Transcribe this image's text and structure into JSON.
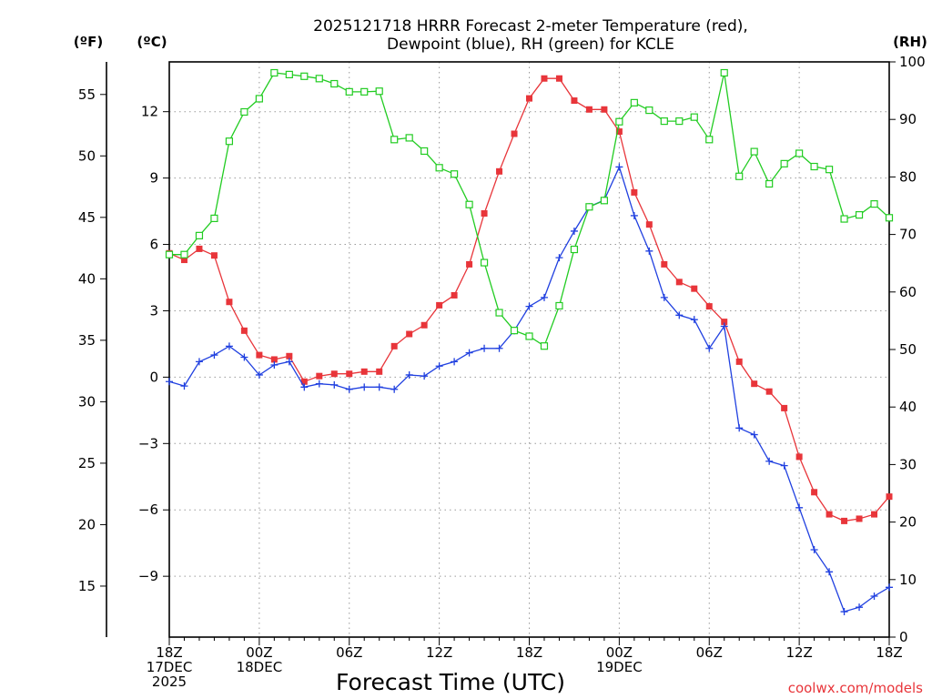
{
  "chart_data": {
    "type": "line",
    "title_line1": "2025121718 HRRR Forecast 2-meter Temperature (red),",
    "title_line2": "Dewpoint (blue), RH (green) for KCLE",
    "xlabel": "Forecast Time (UTC)",
    "credit": "coolwx.com/models",
    "left_outer_unit": "(ºF)",
    "left_inner_unit": "(ºC)",
    "right_unit": "(RH)",
    "colors": {
      "temperature": "#e8353a",
      "dewpoint": "#2040e0",
      "rh": "#22cc22"
    },
    "x_range_hours": [
      0,
      48
    ],
    "x_ticks": [
      {
        "hour": 0,
        "lines": [
          "18Z",
          "17DEC",
          "2025"
        ]
      },
      {
        "hour": 6,
        "lines": [
          "00Z",
          "18DEC"
        ]
      },
      {
        "hour": 12,
        "lines": [
          "06Z"
        ]
      },
      {
        "hour": 18,
        "lines": [
          "12Z"
        ]
      },
      {
        "hour": 24,
        "lines": [
          "18Z"
        ]
      },
      {
        "hour": 30,
        "lines": [
          "00Z",
          "19DEC"
        ]
      },
      {
        "hour": 36,
        "lines": [
          "06Z"
        ]
      },
      {
        "hour": 42,
        "lines": [
          "12Z"
        ]
      },
      {
        "hour": 48,
        "lines": [
          "18Z"
        ]
      }
    ],
    "celsius_range": [
      -11.75,
      14.25
    ],
    "celsius_ticks": [
      -9,
      -6,
      -3,
      0,
      3,
      6,
      9,
      12
    ],
    "fahrenheit_ticks": [
      15,
      20,
      25,
      30,
      35,
      40,
      45,
      50,
      55
    ],
    "rh_range": [
      0,
      100
    ],
    "rh_ticks": [
      0,
      10,
      20,
      30,
      40,
      50,
      60,
      70,
      80,
      90,
      100
    ],
    "series": [
      {
        "name": "Temperature (°C)",
        "axis": "celsius",
        "marker": "filled-square",
        "hours": [
          0,
          1,
          2,
          3,
          4,
          5,
          6,
          7,
          8,
          9,
          10,
          11,
          12,
          13,
          14,
          15,
          16,
          17,
          18,
          19,
          20,
          21,
          22,
          23,
          24,
          25,
          26,
          27,
          28,
          29,
          30,
          31,
          32,
          33,
          34,
          35,
          36,
          37,
          38,
          39,
          40,
          41,
          42,
          43,
          44,
          45,
          46,
          47,
          48
        ],
        "values": [
          5.6,
          5.3,
          5.8,
          5.5,
          3.4,
          2.1,
          1.0,
          0.8,
          0.95,
          -0.2,
          0.05,
          0.15,
          0.15,
          0.25,
          0.25,
          1.4,
          1.95,
          2.35,
          3.25,
          3.7,
          5.1,
          7.4,
          9.3,
          11.0,
          12.6,
          13.5,
          13.5,
          12.5,
          12.1,
          12.1,
          11.1,
          8.35,
          6.9,
          5.1,
          4.3,
          4.0,
          3.2,
          2.5,
          0.7,
          -0.3,
          -0.65,
          -1.4,
          -3.6,
          -5.2,
          -6.2,
          -6.5,
          -6.4,
          -6.2,
          -5.4
        ]
      },
      {
        "name": "Dewpoint (°C)",
        "axis": "celsius",
        "marker": "plus",
        "hours": [
          0,
          1,
          2,
          3,
          4,
          5,
          6,
          7,
          8,
          9,
          10,
          11,
          12,
          13,
          14,
          15,
          16,
          17,
          18,
          19,
          20,
          21,
          22,
          23,
          24,
          25,
          26,
          27,
          28,
          29,
          30,
          31,
          32,
          33,
          34,
          35,
          36,
          37,
          38,
          39,
          40,
          41,
          42,
          43,
          44,
          45,
          46,
          47,
          48
        ],
        "values": [
          -0.2,
          -0.4,
          0.7,
          1.0,
          1.4,
          0.9,
          0.1,
          0.55,
          0.7,
          -0.45,
          -0.3,
          -0.35,
          -0.55,
          -0.45,
          -0.45,
          -0.55,
          0.1,
          0.05,
          0.5,
          0.7,
          1.1,
          1.3,
          1.3,
          2.1,
          3.2,
          3.6,
          5.4,
          6.6,
          7.7,
          8.0,
          9.5,
          7.3,
          5.7,
          3.6,
          2.8,
          2.6,
          1.3,
          2.3,
          -2.3,
          -2.6,
          -3.8,
          -4.0,
          -5.9,
          -7.8,
          -8.8,
          -10.6,
          -10.4,
          -9.9,
          -9.5
        ]
      },
      {
        "name": "RH (%)",
        "axis": "rh",
        "marker": "open-square",
        "hours": [
          0,
          1,
          2,
          3,
          4,
          5,
          6,
          7,
          8,
          9,
          10,
          11,
          12,
          13,
          14,
          15,
          16,
          17,
          18,
          19,
          20,
          21,
          22,
          23,
          24,
          25,
          26,
          27,
          28,
          29,
          30,
          31,
          32,
          33,
          34,
          35,
          36,
          37,
          38,
          39,
          40,
          41,
          42,
          43,
          44,
          45,
          46,
          47,
          48
        ],
        "values": [
          66.5,
          66.5,
          69.8,
          72.8,
          86.2,
          91.3,
          93.6,
          98.1,
          97.8,
          97.5,
          97.1,
          96.2,
          94.8,
          94.8,
          94.9,
          86.5,
          86.8,
          84.5,
          81.6,
          80.5,
          75.2,
          65.1,
          56.4,
          53.3,
          52.3,
          50.6,
          57.6,
          67.4,
          74.8,
          75.9,
          89.6,
          92.9,
          91.6,
          89.7,
          89.7,
          90.4,
          86.5,
          98.1,
          80.1,
          84.4,
          78.8,
          82.3,
          84.1,
          81.8,
          81.3,
          72.7,
          73.4,
          75.3,
          72.9
        ]
      }
    ]
  }
}
